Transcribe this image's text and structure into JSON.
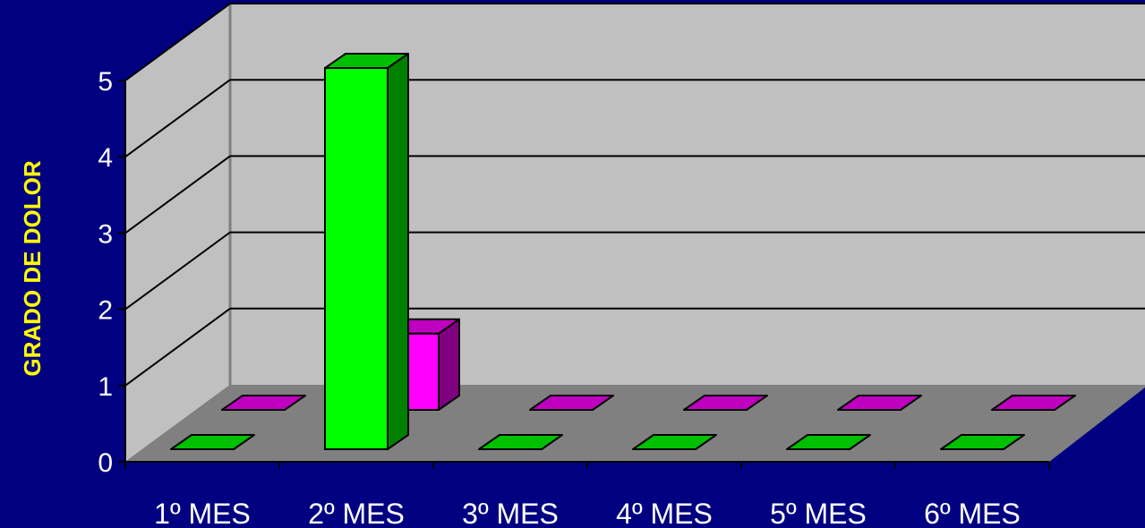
{
  "colors": {
    "background": "#000080",
    "back_wall": "#C0C0C0",
    "side_wall": "#C0C0C0",
    "floor": "#808080",
    "series1_front": "#00FF00",
    "series1_top": "#00C000",
    "series1_side": "#008000",
    "series2_front": "#FF00FF",
    "series2_top": "#C000C0",
    "series2_side": "#800080",
    "axis_title": "#FFFF00"
  },
  "chart_data": {
    "type": "bar",
    "style": "3d-clustered",
    "categories": [
      "1º MES",
      "2º MES",
      "3º MES",
      "4º MES",
      "5º MES",
      "6º MES"
    ],
    "series": [
      {
        "values": [
          0,
          5,
          0,
          0,
          0,
          0
        ]
      },
      {
        "values": [
          0,
          1,
          0,
          0,
          0,
          0
        ]
      }
    ],
    "ylabel": "GRADO DE DOLOR",
    "ylim": [
      0,
      5
    ],
    "yticks": [
      "0",
      "1",
      "2",
      "3",
      "4",
      "5"
    ],
    "grid": true,
    "legend": "none"
  }
}
